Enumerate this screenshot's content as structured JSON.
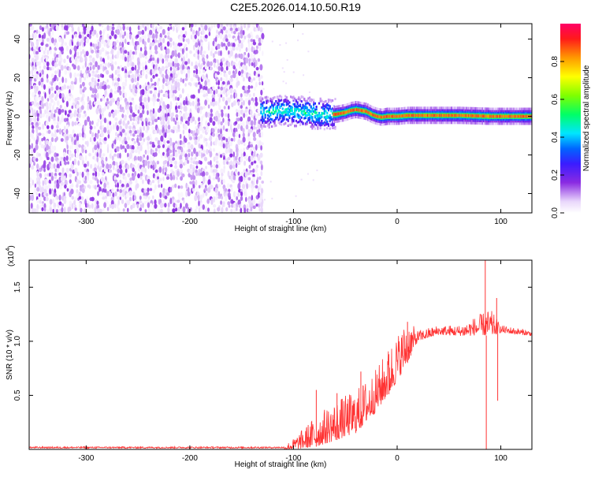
{
  "figure_title": "C2E5.2026.014.10.50.R19",
  "chart_data": [
    {
      "type": "heatmap",
      "xlabel": "Height of straight line (km)",
      "ylabel": "Frequency (Hz)",
      "xlim": [
        -355,
        130
      ],
      "ylim": [
        -50,
        48
      ],
      "x_ticks": [
        -300,
        -200,
        -100,
        0,
        100
      ],
      "y_ticks": [
        -40,
        -20,
        0,
        20,
        40
      ],
      "colorbar": {
        "label": "Normalized spectral amplitude",
        "range": [
          0,
          1
        ],
        "ticks": [
          "0.0",
          "0.2",
          "0.4",
          "0.6",
          "0.8"
        ],
        "colors": [
          "#ffffff",
          "#e9d7fb",
          "#8a2be2",
          "#3a1cff",
          "#0066ff",
          "#00e5ff",
          "#00ff66",
          "#7fff00",
          "#ffff00",
          "#ff9900",
          "#ff1a1a",
          "#ff0066"
        ]
      },
      "regions": [
        {
          "x_range": [
            -355,
            -130
          ],
          "freq_range": [
            -50,
            48
          ],
          "amplitude": 0.1
        },
        {
          "x_range": [
            -130,
            -60
          ],
          "freq_range": [
            -8,
            8
          ],
          "amplitude": 0.35
        },
        {
          "x_range": [
            -60,
            130
          ],
          "freq_range": [
            -2,
            2
          ],
          "amplitude": 0.85
        }
      ],
      "ridge": {
        "x": [
          -130,
          -110,
          -90,
          -70,
          -60,
          -50,
          -45,
          -40,
          -35,
          -30,
          -25,
          -20,
          -15,
          -10,
          -5,
          0,
          10,
          30,
          60,
          90,
          130
        ],
        "y": [
          2,
          3,
          2,
          1,
          1,
          2,
          3,
          3.5,
          3,
          2.5,
          1,
          0,
          -0.5,
          0,
          0,
          0,
          0.5,
          0.5,
          0.5,
          0,
          0
        ]
      }
    },
    {
      "type": "line",
      "xlabel": "Height of straight line (km)",
      "ylabel": "SNR (10 * v/v)",
      "y_exponent_label": "(x10",
      "y_exponent_power": "4",
      "xlim": [
        -355,
        130
      ],
      "ylim": [
        0,
        1.75
      ],
      "x_ticks": [
        -300,
        -200,
        -100,
        0,
        100
      ],
      "y_ticks": [
        "0.5",
        "1.0",
        "1.5"
      ],
      "line_color": "#ff3333",
      "envelope": {
        "x": [
          -355,
          -110,
          -100,
          -80,
          -60,
          -40,
          -20,
          -5,
          10,
          20,
          40,
          60,
          70,
          80,
          90,
          100,
          130
        ],
        "low": [
          0.0,
          0.0,
          0.0,
          0.02,
          0.08,
          0.15,
          0.35,
          0.55,
          0.8,
          1.0,
          1.06,
          1.05,
          1.05,
          1.06,
          1.05,
          1.08,
          1.05
        ],
        "high": [
          0.02,
          0.03,
          0.1,
          0.3,
          0.45,
          0.55,
          0.75,
          1.0,
          1.2,
          1.1,
          1.15,
          1.15,
          1.2,
          1.25,
          1.3,
          1.15,
          1.1
        ]
      },
      "spikes": [
        {
          "x": -78,
          "y": 0.55
        },
        {
          "x": -58,
          "y": 0.52
        },
        {
          "x": -35,
          "y": 0.72
        },
        {
          "x": -8,
          "y": 0.88
        },
        {
          "x": 10,
          "y": 1.18
        },
        {
          "x": 85,
          "y": 1.75
        },
        {
          "x": 86,
          "y": 0.0
        },
        {
          "x": 96,
          "y": 1.4
        },
        {
          "x": 97,
          "y": 0.45
        }
      ]
    }
  ]
}
